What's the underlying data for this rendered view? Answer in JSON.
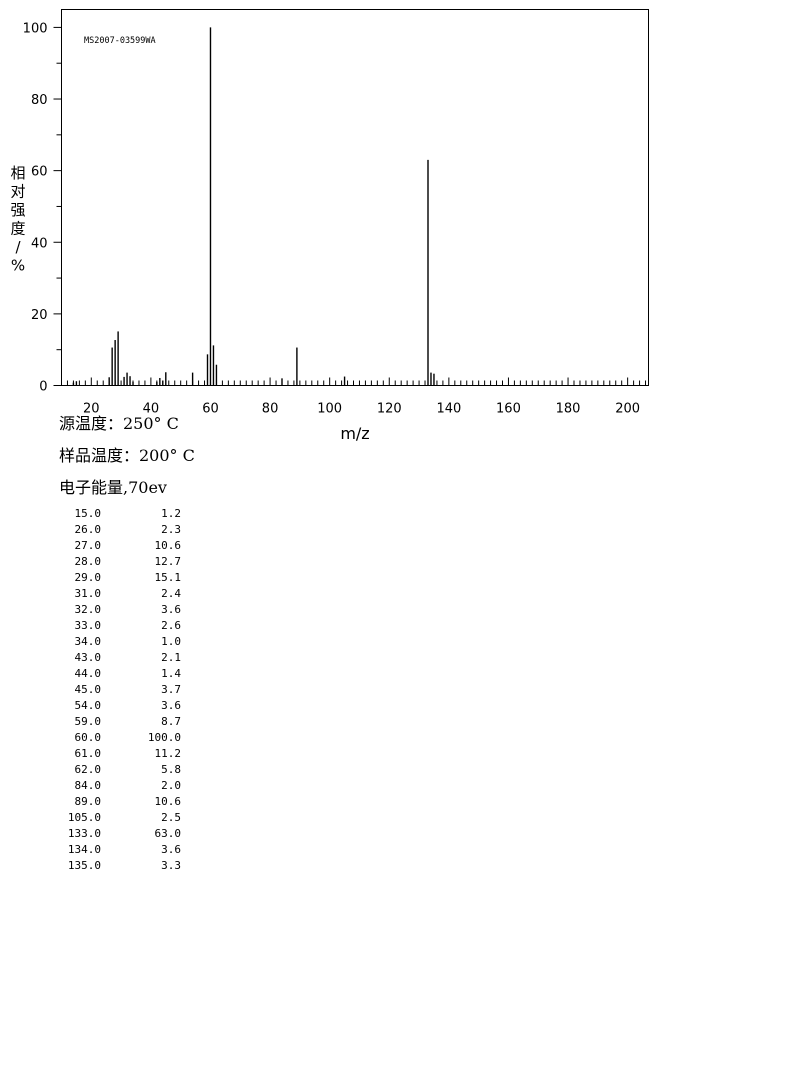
{
  "spectrum_id": "MS2007-03599WA",
  "conditions": {
    "source_temp": "源温度：250° C",
    "sample_temp": "样品温度：200° C",
    "electron_energy": "电子能量,70ev"
  },
  "peak_table": {
    "rows": [
      [
        "15.0",
        "1.2"
      ],
      [
        "26.0",
        "2.3"
      ],
      [
        "27.0",
        "10.6"
      ],
      [
        "28.0",
        "12.7"
      ],
      [
        "29.0",
        "15.1"
      ],
      [
        "31.0",
        "2.4"
      ],
      [
        "32.0",
        "3.6"
      ],
      [
        "33.0",
        "2.6"
      ],
      [
        "34.0",
        "1.0"
      ],
      [
        "43.0",
        "2.1"
      ],
      [
        "44.0",
        "1.4"
      ],
      [
        "45.0",
        "3.7"
      ],
      [
        "54.0",
        "3.6"
      ],
      [
        "59.0",
        "8.7"
      ],
      [
        "60.0",
        "100.0"
      ],
      [
        "61.0",
        "11.2"
      ],
      [
        "62.0",
        "5.8"
      ],
      [
        "84.0",
        "2.0"
      ],
      [
        "89.0",
        "10.6"
      ],
      [
        "105.0",
        "2.5"
      ],
      [
        "133.0",
        "63.0"
      ],
      [
        "134.0",
        "3.6"
      ],
      [
        "135.0",
        "3.3"
      ]
    ]
  },
  "chart_data": {
    "type": "bar",
    "xlabel": "m/z",
    "ylabel": "相对强度/%",
    "xlim": [
      10,
      207
    ],
    "ylim": [
      0,
      105
    ],
    "xticks": [
      20,
      40,
      60,
      80,
      100,
      120,
      140,
      160,
      180,
      200
    ],
    "yticks": [
      0,
      20,
      40,
      60,
      80,
      100
    ],
    "x_minor_step": 2,
    "y_minor_step": 10,
    "grid": false,
    "series": [
      {
        "x": [
          14,
          15,
          26,
          27,
          28,
          29,
          31,
          32,
          33,
          34,
          42,
          43,
          44,
          45,
          54,
          59,
          60,
          61,
          62,
          84,
          89,
          105,
          133,
          134,
          135
        ],
        "y": [
          0.8,
          1.2,
          2.3,
          10.6,
          12.7,
          15.1,
          2.4,
          3.6,
          2.6,
          1.0,
          1.0,
          2.1,
          1.4,
          3.7,
          3.6,
          8.7,
          100.0,
          11.2,
          5.8,
          2.0,
          10.6,
          2.5,
          63.0,
          3.6,
          3.3
        ]
      }
    ]
  }
}
